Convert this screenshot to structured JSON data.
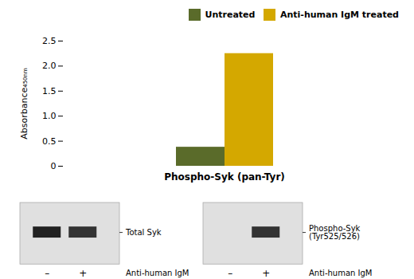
{
  "chart_data": {
    "type": "bar",
    "categories": [
      "Phospho-Syk (pan-Tyr)"
    ],
    "series": [
      {
        "name": "Untreated",
        "color": "#5a6b2a",
        "values": [
          0.38
        ]
      },
      {
        "name": "Anti-human IgM treated",
        "color": "#d4a800",
        "values": [
          2.25
        ]
      }
    ],
    "ylabel": "Absorbance₄₅₀ₙₘ",
    "ylim": [
      0,
      2.5
    ],
    "yticks": [
      0,
      0.5,
      {
        "value": 1.0,
        "label": "1.0"
      },
      1.5,
      {
        "value": 2.0,
        "label": "2.0"
      },
      2.5
    ],
    "grid": false,
    "legend": "upper right",
    "blots": [
      {
        "label": "Total Syk",
        "lanes": [
          "–",
          "+"
        ],
        "bands": [
          true,
          true
        ],
        "xlabel": "Anti-human IgM"
      },
      {
        "label": "Phospho-Syk\n(Tyr525/526)",
        "lanes": [
          "–",
          "+"
        ],
        "bands": [
          false,
          true
        ],
        "xlabel": "Anti-human IgM"
      }
    ]
  }
}
